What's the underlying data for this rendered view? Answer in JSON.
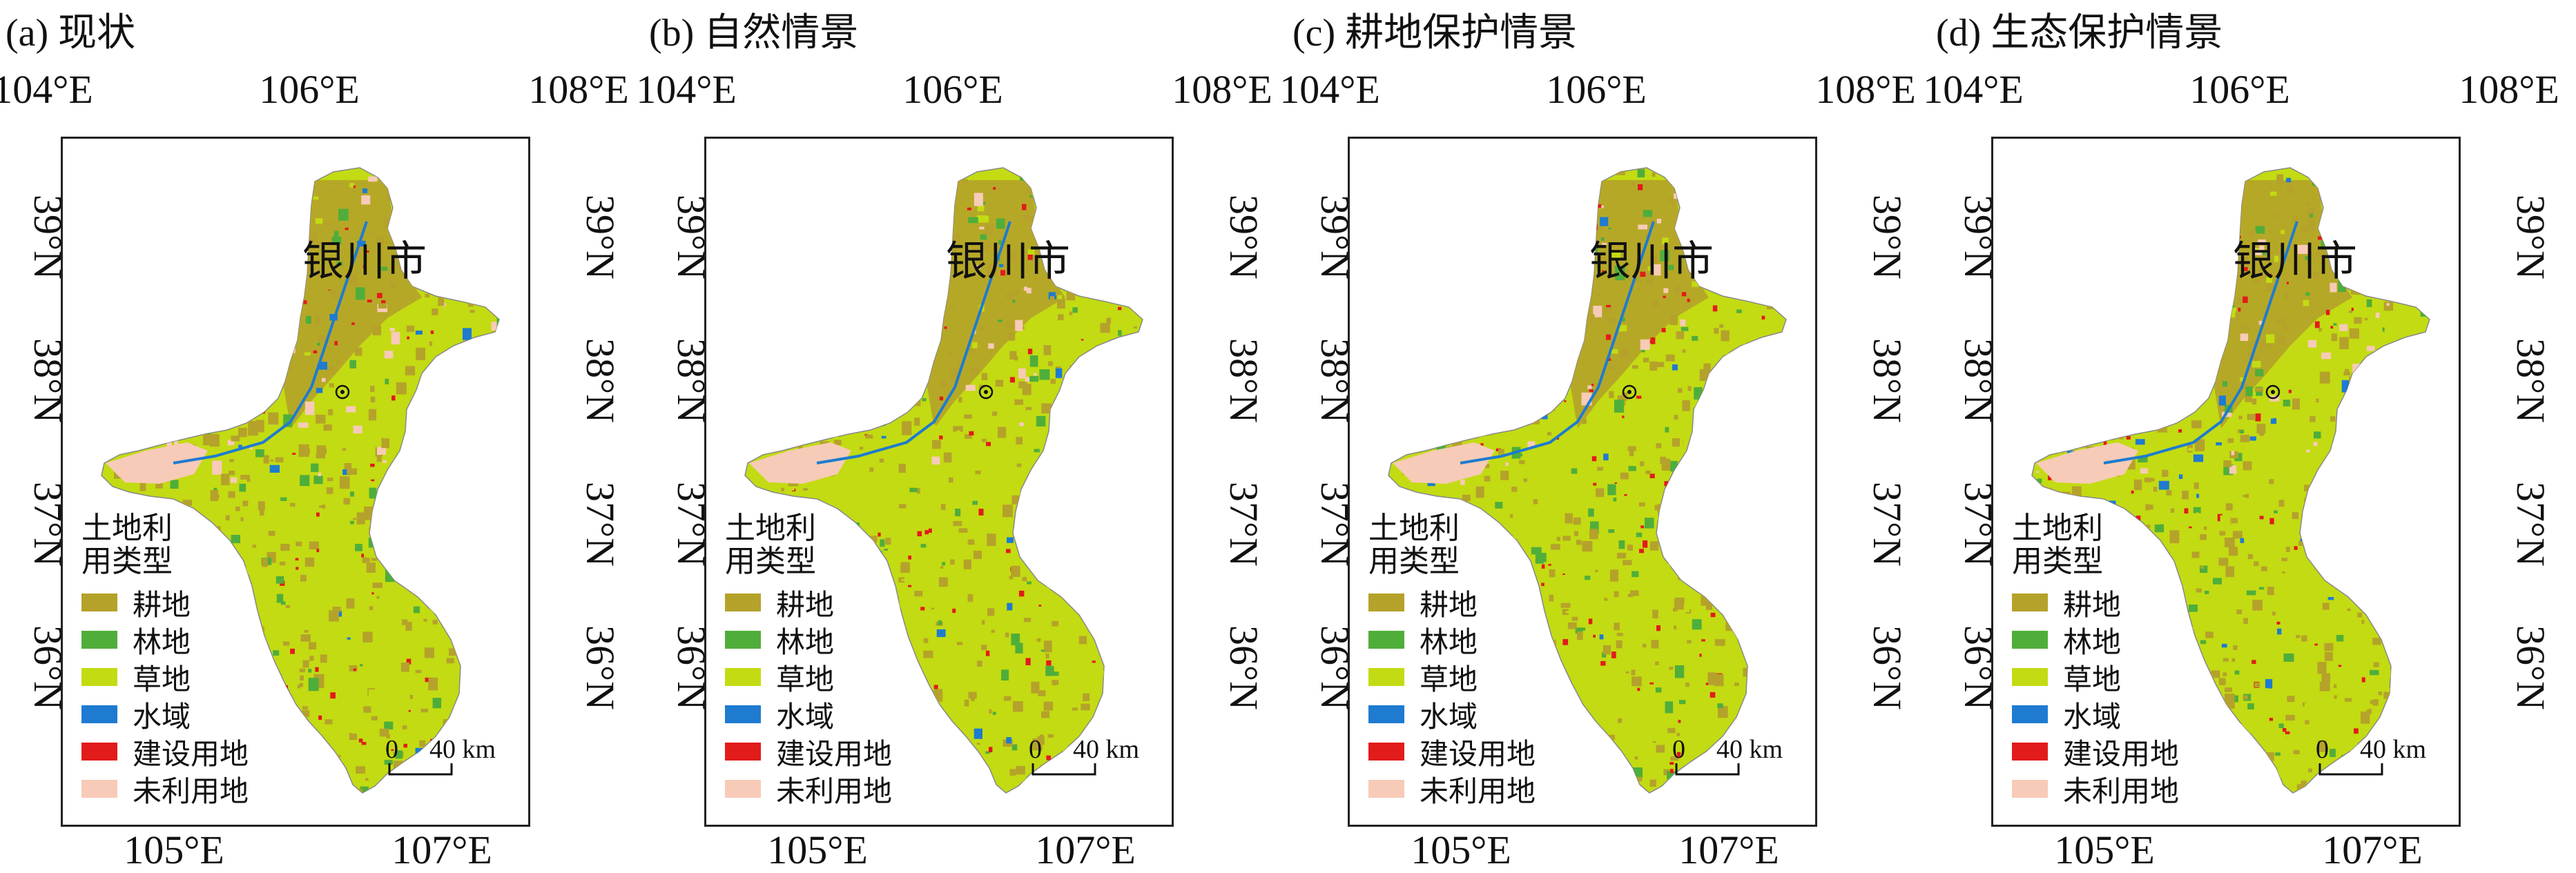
{
  "panels": [
    {
      "title": "(a) 现状"
    },
    {
      "title": "(b) 自然情景"
    },
    {
      "title": "(c) 耕地保护情景"
    },
    {
      "title": "(d) 生态保护情景"
    }
  ],
  "axes": {
    "top_ticks": [
      "104°E",
      "106°E",
      "108°E"
    ],
    "bottom_ticks": [
      "105°E",
      "107°E"
    ],
    "lat_ticks": [
      "39°N",
      "38°N",
      "37°N",
      "36°N"
    ]
  },
  "city_label": "银川市",
  "legend": {
    "title_line1": "土地利",
    "title_line2": "用类型",
    "items": [
      {
        "label": "耕地",
        "color": "#b5a22a"
      },
      {
        "label": "林地",
        "color": "#4fae3a"
      },
      {
        "label": "草地",
        "color": "#c3db12"
      },
      {
        "label": "水域",
        "color": "#1e7bd0"
      },
      {
        "label": "建设用地",
        "color": "#e21b1b"
      },
      {
        "label": "未利用地",
        "color": "#f7cbb7"
      }
    ]
  },
  "scalebar": {
    "zero": "0",
    "value": "40 km"
  }
}
